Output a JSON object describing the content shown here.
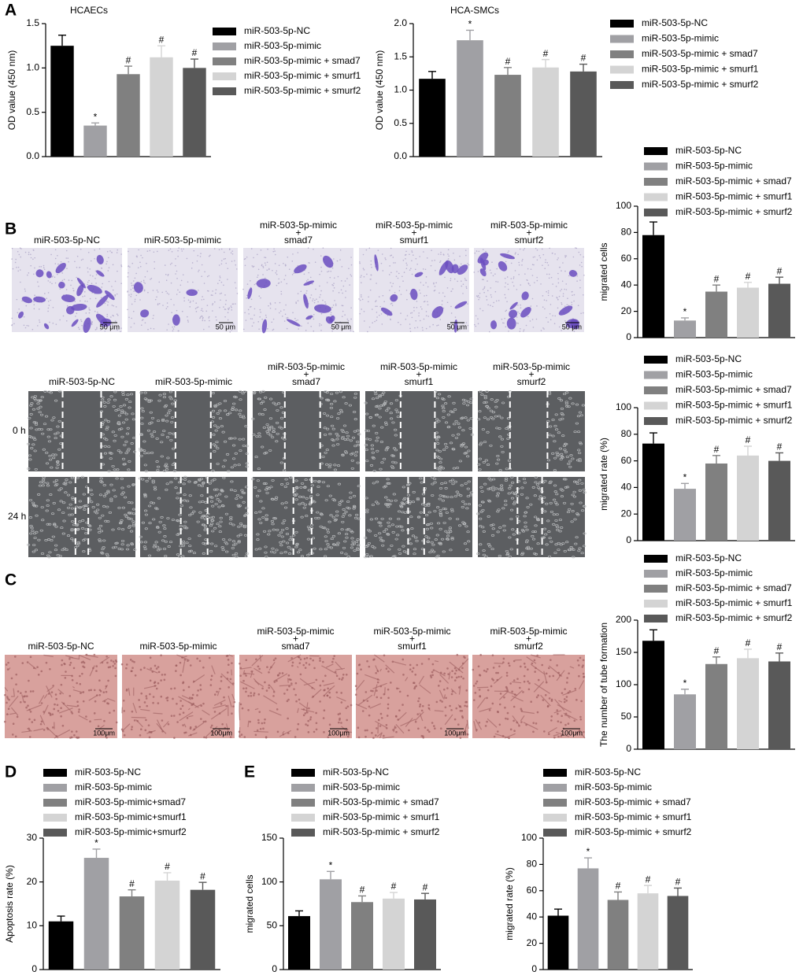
{
  "panel_labels": [
    "A",
    "B",
    "C",
    "D",
    "E"
  ],
  "transwell": {
    "columns": [
      [
        "miR-503-5p-NC"
      ],
      [
        "miR-503-5p-mimic"
      ],
      [
        "miR-503-5p-mimic",
        "+",
        "smad7"
      ],
      [
        "miR-503-5p-mimic",
        "+",
        "smurf1"
      ],
      [
        "miR-503-5p-mimic",
        "+",
        "smurf2"
      ]
    ],
    "scale_bar": "50 μm"
  },
  "wound_healing": {
    "columns": [
      [
        "miR-503-5p-NC"
      ],
      [
        "miR-503-5p-mimic"
      ],
      [
        "miR-503-5p-mimic",
        "+",
        "smad7"
      ],
      [
        "miR-503-5p-mimic",
        "+",
        "smurf1"
      ],
      [
        "miR-503-5p-mimic",
        "+",
        "smurf2"
      ]
    ],
    "rows": [
      "0 h",
      "24 h"
    ]
  },
  "tube_formation": {
    "columns": [
      [
        "miR-503-5p-NC"
      ],
      [
        "miR-503-5p-mimic"
      ],
      [
        "miR-503-5p-mimic",
        "+",
        "smad7"
      ],
      [
        "miR-503-5p-mimic",
        "+",
        "smurf1"
      ],
      [
        "miR-503-5p-mimic",
        "+",
        "smurf2"
      ]
    ],
    "scale_bar": "100μm"
  },
  "chart_data": [
    {
      "type": "bar",
      "title": "HCAECs",
      "ylabel": "OD value (450 nm)",
      "categories": [
        "miR-503-5p-NC",
        "miR-503-5p-mimic",
        "miR-503-5p-mimic + smad7",
        "miR-503-5p-mimic + smurf1",
        "miR-503-5p-mimic + smurf2"
      ],
      "values": [
        1.25,
        0.35,
        0.93,
        1.12,
        1.0
      ],
      "errors": [
        0.12,
        0.03,
        0.09,
        0.13,
        0.1
      ],
      "annotations": [
        null,
        "*",
        "#",
        "#",
        "#"
      ],
      "colors": [
        "#000000",
        "#a0a0a4",
        "#808080",
        "#d4d4d4",
        "#595959"
      ],
      "ylim": [
        0,
        1.5
      ],
      "yticks": [
        {
          "value": 0,
          "label": "0.0"
        },
        0.5,
        {
          "value": 1,
          "label": "1.0"
        },
        1.5
      ]
    },
    {
      "type": "bar",
      "title": "HCA-SMCs",
      "ylabel": "OD value (450 nm)",
      "categories": [
        "miR-503-5p-NC",
        "miR-503-5p-mimic",
        "miR-503-5p-mimic + smad7",
        "miR-503-5p-mimic + smurf1",
        "miR-503-5p-mimic + smurf2"
      ],
      "values": [
        1.17,
        1.75,
        1.23,
        1.34,
        1.28
      ],
      "errors": [
        0.11,
        0.15,
        0.11,
        0.12,
        0.11
      ],
      "annotations": [
        null,
        "*",
        "#",
        "#",
        "#"
      ],
      "colors": [
        "#000000",
        "#a0a0a4",
        "#808080",
        "#d4d4d4",
        "#595959"
      ],
      "ylim": [
        0,
        2
      ],
      "yticks": [
        {
          "value": 0,
          "label": "0.0"
        },
        0.5,
        {
          "value": 1,
          "label": "1.0"
        },
        1.5,
        {
          "value": 2,
          "label": "2.0"
        }
      ]
    },
    {
      "type": "bar",
      "ylabel": "migrated cells",
      "categories": [
        "miR-503-5p-NC",
        "miR-503-5p-mimic",
        "miR-503-5p-mimic + smad7",
        "miR-503-5p-mimic + smurf1",
        "miR-503-5p-mimic + smurf2"
      ],
      "values": [
        78,
        13,
        35,
        38,
        41
      ],
      "errors": [
        10,
        2,
        5,
        4,
        5
      ],
      "annotations": [
        null,
        "*",
        "#",
        "#",
        "#"
      ],
      "colors": [
        "#000000",
        "#a0a0a4",
        "#808080",
        "#d4d4d4",
        "#595959"
      ],
      "ylim": [
        0,
        100
      ],
      "yticks": [
        0,
        20,
        40,
        60,
        80,
        100
      ]
    },
    {
      "type": "bar",
      "ylabel": "migrated rate (%)",
      "categories": [
        "miR-503-5p-NC",
        "miR-503-5p-mimic",
        "miR-503-5p-mimic + smad7",
        "miR-503-5p-mimic + smurf1",
        "miR-503-5p-mimic + smurf2"
      ],
      "values": [
        73,
        39,
        58,
        64,
        60
      ],
      "errors": [
        8,
        4,
        6,
        7,
        6
      ],
      "annotations": [
        null,
        "*",
        "#",
        "#",
        "#"
      ],
      "colors": [
        "#000000",
        "#a0a0a4",
        "#808080",
        "#d4d4d4",
        "#595959"
      ],
      "ylim": [
        0,
        100
      ],
      "yticks": [
        0,
        20,
        40,
        60,
        80,
        100
      ]
    },
    {
      "type": "bar",
      "ylabel": "The number of tube formation",
      "categories": [
        "miR-503-5p-NC",
        "miR-503-5p-mimic",
        "miR-503-5p-mimic + smad7",
        "miR-503-5p-mimic + smurf1",
        "miR-503-5p-mimic + smurf2"
      ],
      "values": [
        168,
        85,
        132,
        141,
        136
      ],
      "errors": [
        17,
        8,
        11,
        14,
        13
      ],
      "annotations": [
        null,
        "*",
        "#",
        "#",
        "#"
      ],
      "colors": [
        "#000000",
        "#a0a0a4",
        "#808080",
        "#d4d4d4",
        "#595959"
      ],
      "ylim": [
        0,
        200
      ],
      "yticks": [
        0,
        50,
        100,
        150,
        200
      ]
    },
    {
      "type": "bar",
      "ylabel": "Apoptosis rate (%)",
      "categories": [
        "miR-503-5p-NC",
        "miR-503-5p-mimic",
        "miR-503-5p-mimic+smad7",
        "miR-503-5p-mimic+smurf1",
        "miR-503-5p-mimic+smurf2"
      ],
      "values": [
        11.0,
        25.5,
        16.7,
        20.3,
        18.2
      ],
      "errors": [
        1.2,
        2.0,
        1.5,
        1.8,
        1.7
      ],
      "annotations": [
        null,
        "*",
        "#",
        "#",
        "#"
      ],
      "colors": [
        "#000000",
        "#a0a0a4",
        "#808080",
        "#d4d4d4",
        "#595959"
      ],
      "ylim": [
        0,
        30
      ],
      "yticks": [
        0,
        10,
        20,
        30
      ]
    },
    {
      "type": "bar",
      "ylabel": "migrated cells",
      "categories": [
        "miR-503-5p-NC",
        "miR-503-5p-mimic",
        "miR-503-5p-mimic + smad7",
        "miR-503-5p-mimic + smurf1",
        "miR-503-5p-mimic + smurf2"
      ],
      "values": [
        61,
        103,
        77,
        81,
        80
      ],
      "errors": [
        6,
        9,
        7,
        7,
        7
      ],
      "annotations": [
        null,
        "*",
        "#",
        "#",
        "#"
      ],
      "colors": [
        "#000000",
        "#a0a0a4",
        "#808080",
        "#d4d4d4",
        "#595959"
      ],
      "ylim": [
        0,
        150
      ],
      "yticks": [
        0,
        50,
        100,
        150
      ]
    },
    {
      "type": "bar",
      "ylabel": "migrated rate (%)",
      "categories": [
        "miR-503-5p-NC",
        "miR-503-5p-mimic",
        "miR-503-5p-mimic + smad7",
        "miR-503-5p-mimic + smurf1",
        "miR-503-5p-mimic + smurf2"
      ],
      "values": [
        41,
        77,
        53,
        58,
        56
      ],
      "errors": [
        5,
        8,
        6,
        6,
        6
      ],
      "annotations": [
        null,
        "*",
        "#",
        "#",
        "#"
      ],
      "colors": [
        "#000000",
        "#a0a0a4",
        "#808080",
        "#d4d4d4",
        "#595959"
      ],
      "ylim": [
        0,
        100
      ],
      "yticks": [
        0,
        20,
        40,
        60,
        80,
        100
      ]
    }
  ]
}
